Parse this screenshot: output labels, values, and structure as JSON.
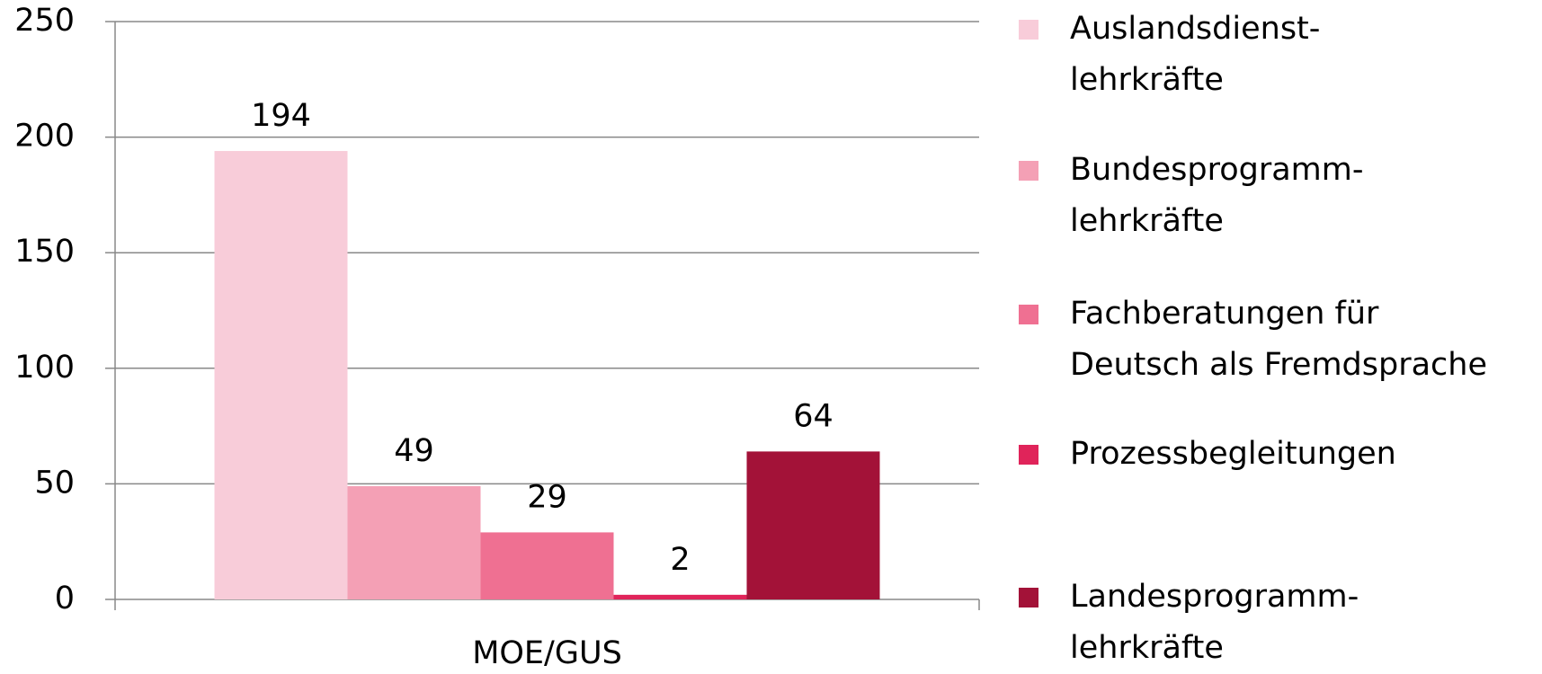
{
  "chart_data": {
    "type": "bar",
    "categories": [
      "MOE/GUS"
    ],
    "series": [
      {
        "name": "Auslandsdienst-\nlehrkräfte",
        "color": "#f8ccd9",
        "values": [
          194
        ]
      },
      {
        "name": "Bundesprogramm-\nlehrkräfte",
        "color": "#f4a0b5",
        "values": [
          49
        ]
      },
      {
        "name": "Fachberatungen für\nDeutsch als Fremdsprache",
        "color": "#ef7092",
        "values": [
          29
        ]
      },
      {
        "name": "Prozessbegleitungen",
        "color": "#e0245a",
        "values": [
          2
        ]
      },
      {
        "name": "Landesprogramm-\nlehrkräfte",
        "color": "#a31238",
        "values": [
          64
        ]
      }
    ],
    "ylim": [
      0,
      250
    ],
    "yticks": [
      0,
      50,
      100,
      150,
      200,
      250
    ],
    "grid": true,
    "legend": "right"
  }
}
